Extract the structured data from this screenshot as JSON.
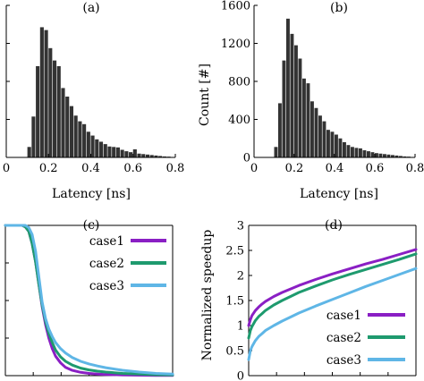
{
  "chart_data": [
    {
      "panel": "(a)",
      "type": "bar",
      "title": "(a)",
      "xlabel": "Latency [ns]",
      "ylabel": "",
      "xlim": [
        0,
        0.8
      ],
      "ylim": [
        0,
        1600
      ],
      "xticks": [
        "0",
        "0.2",
        "0.4",
        "0.6",
        "0.8"
      ],
      "yticks": [],
      "bin_width": 0.02,
      "x": [
        0.11,
        0.13,
        0.15,
        0.17,
        0.19,
        0.21,
        0.23,
        0.25,
        0.27,
        0.29,
        0.31,
        0.33,
        0.35,
        0.37,
        0.39,
        0.41,
        0.43,
        0.45,
        0.47,
        0.49,
        0.51,
        0.53,
        0.55,
        0.57,
        0.59,
        0.61,
        0.63,
        0.65,
        0.67,
        0.69,
        0.71,
        0.73,
        0.75,
        0.77
      ],
      "values": [
        110,
        430,
        960,
        1370,
        1340,
        1150,
        1020,
        960,
        730,
        640,
        540,
        440,
        380,
        350,
        270,
        230,
        190,
        165,
        140,
        115,
        110,
        105,
        80,
        65,
        55,
        85,
        40,
        35,
        30,
        25,
        20,
        15,
        10,
        8
      ],
      "color": "#333333",
      "grid": false
    },
    {
      "panel": "(b)",
      "type": "bar",
      "title": "(b)",
      "xlabel": "Latency [ns]",
      "ylabel": "Count [#]",
      "xlim": [
        0,
        0.8
      ],
      "ylim": [
        0,
        1600
      ],
      "xticks": [
        "0",
        "0.2",
        "0.4",
        "0.6",
        "0.8"
      ],
      "yticks": [
        "0",
        "400",
        "800",
        "1200",
        "1600"
      ],
      "bin_width": 0.02,
      "x": [
        0.11,
        0.13,
        0.15,
        0.17,
        0.19,
        0.21,
        0.23,
        0.25,
        0.27,
        0.29,
        0.31,
        0.33,
        0.35,
        0.37,
        0.39,
        0.41,
        0.43,
        0.45,
        0.47,
        0.49,
        0.51,
        0.53,
        0.55,
        0.57,
        0.59,
        0.61,
        0.63,
        0.65,
        0.67,
        0.69,
        0.71,
        0.73,
        0.75,
        0.77
      ],
      "values": [
        110,
        570,
        1020,
        1460,
        1300,
        1180,
        1040,
        830,
        780,
        590,
        520,
        440,
        380,
        290,
        270,
        240,
        200,
        160,
        130,
        110,
        100,
        95,
        75,
        65,
        55,
        45,
        40,
        35,
        30,
        25,
        20,
        15,
        10,
        8
      ],
      "color": "#333333",
      "grid": false
    },
    {
      "panel": "(c)",
      "type": "line",
      "title": "(c)",
      "xlabel": "",
      "ylabel": "",
      "xlim": [
        0,
        1
      ],
      "ylim": [
        0,
        1
      ],
      "legend": "right",
      "x": [
        0,
        0.05,
        0.1,
        0.12,
        0.14,
        0.16,
        0.18,
        0.2,
        0.22,
        0.24,
        0.26,
        0.28,
        0.3,
        0.33,
        0.36,
        0.4,
        0.45,
        0.5,
        0.55,
        0.6,
        0.7,
        0.8,
        0.9,
        1.0
      ],
      "series": [
        {
          "name": "case1",
          "color": "#8a1fc4",
          "values": [
            1,
            1,
            1,
            0.99,
            0.96,
            0.88,
            0.76,
            0.61,
            0.46,
            0.34,
            0.25,
            0.18,
            0.13,
            0.085,
            0.055,
            0.035,
            0.022,
            0.015,
            0.011,
            0.008,
            0.005,
            0.003,
            0.002,
            0.001
          ]
        },
        {
          "name": "case2",
          "color": "#1e9a6e",
          "values": [
            1,
            1,
            1,
            0.99,
            0.96,
            0.88,
            0.76,
            0.61,
            0.47,
            0.36,
            0.28,
            0.22,
            0.17,
            0.125,
            0.095,
            0.07,
            0.05,
            0.038,
            0.03,
            0.024,
            0.015,
            0.01,
            0.006,
            0.004
          ]
        },
        {
          "name": "case3",
          "color": "#5fb6e6",
          "values": [
            1,
            1,
            1,
            1,
            0.985,
            0.94,
            0.83,
            0.66,
            0.49,
            0.38,
            0.31,
            0.26,
            0.22,
            0.18,
            0.15,
            0.12,
            0.095,
            0.078,
            0.064,
            0.053,
            0.036,
            0.024,
            0.015,
            0.01
          ]
        }
      ]
    },
    {
      "panel": "(d)",
      "type": "line",
      "title": "(d)",
      "xlabel": "",
      "ylabel": "Normalized speedup",
      "xlim": [
        0,
        1
      ],
      "ylim": [
        0,
        3
      ],
      "yticks": [
        "0",
        "0.5",
        "1",
        "1.5",
        "2",
        "2.5",
        "3"
      ],
      "legend": "bottom-right",
      "x": [
        0,
        0.01,
        0.02,
        0.04,
        0.06,
        0.08,
        0.1,
        0.15,
        0.2,
        0.25,
        0.3,
        0.4,
        0.5,
        0.6,
        0.7,
        0.8,
        0.9,
        1.0
      ],
      "series": [
        {
          "name": "case1",
          "color": "#8a1fc4",
          "values": [
            1.0,
            1.12,
            1.2,
            1.3,
            1.37,
            1.43,
            1.48,
            1.58,
            1.66,
            1.73,
            1.8,
            1.92,
            2.03,
            2.13,
            2.23,
            2.32,
            2.42,
            2.52
          ]
        },
        {
          "name": "case2",
          "color": "#1e9a6e",
          "values": [
            0.75,
            0.9,
            0.98,
            1.1,
            1.18,
            1.24,
            1.3,
            1.41,
            1.5,
            1.58,
            1.66,
            1.79,
            1.91,
            2.02,
            2.12,
            2.22,
            2.32,
            2.43
          ]
        },
        {
          "name": "case3",
          "color": "#5fb6e6",
          "values": [
            0.32,
            0.5,
            0.58,
            0.7,
            0.78,
            0.84,
            0.9,
            1.0,
            1.09,
            1.17,
            1.25,
            1.39,
            1.52,
            1.65,
            1.78,
            1.9,
            2.02,
            2.14
          ]
        }
      ]
    }
  ]
}
